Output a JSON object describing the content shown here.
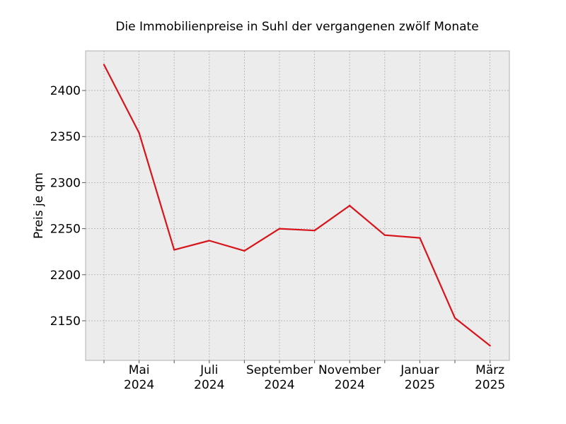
{
  "chart_data": {
    "type": "line",
    "title": "Die Immobilienpreise in Suhl der vergangenen zwölf Monate",
    "xlabel": "",
    "ylabel": "Preis je qm",
    "x": [
      "2024-04",
      "2024-05",
      "2024-06",
      "2024-07",
      "2024-08",
      "2024-09",
      "2024-10",
      "2024-11",
      "2024-12",
      "2025-01",
      "2025-02",
      "2025-03"
    ],
    "series": [
      {
        "values": [
          2428,
          2354,
          2227,
          2237,
          2226,
          2250,
          2248,
          2275,
          2243,
          2240,
          2153,
          2123
        ]
      }
    ],
    "xticks": [
      {
        "x": "2024-05",
        "line1": "Mai",
        "line2": "2024"
      },
      {
        "x": "2024-07",
        "line1": "Juli",
        "line2": "2024"
      },
      {
        "x": "2024-09",
        "line1": "September",
        "line2": "2024"
      },
      {
        "x": "2024-11",
        "line1": "November",
        "line2": "2024"
      },
      {
        "x": "2025-01",
        "line1": "Januar",
        "line2": "2025"
      },
      {
        "x": "2025-03",
        "line1": "März",
        "line2": "2025"
      }
    ],
    "yticks": [
      2150,
      2200,
      2250,
      2300,
      2350,
      2400
    ],
    "ylim": [
      2107,
      2443
    ],
    "grid": true,
    "colors": {
      "line": "#d8141b",
      "plot_background": "#ececec",
      "grid": "#b0b0b0",
      "frame": "#b0b0b0"
    }
  }
}
